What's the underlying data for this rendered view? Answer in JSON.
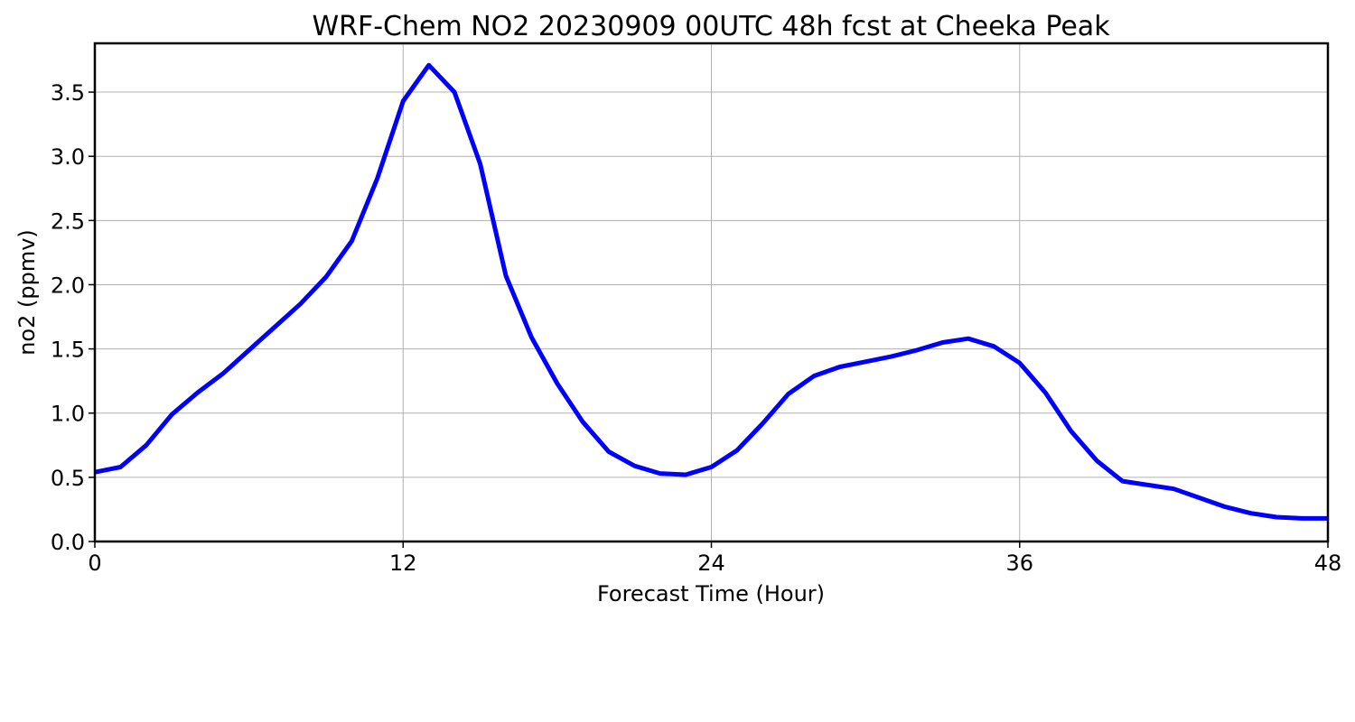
{
  "chart_data": {
    "type": "line",
    "title": "WRF-Chem NO2  20230909 00UTC 48h fcst at Cheeka Peak",
    "xlabel": "Forecast Time (Hour)",
    "ylabel": "no2  (ppmv)",
    "xlim": [
      0,
      48
    ],
    "ylim": [
      0,
      3.88
    ],
    "x_ticks": [
      "0",
      "12",
      "24",
      "36",
      "48"
    ],
    "x_tick_values": [
      0,
      12,
      24,
      36,
      48
    ],
    "y_ticks": [
      "0.0",
      "0.5",
      "1.0",
      "1.5",
      "2.0",
      "2.5",
      "3.0",
      "3.5"
    ],
    "y_tick_values": [
      0,
      0.5,
      1.0,
      1.5,
      2.0,
      2.5,
      3.0,
      3.5
    ],
    "grid": true,
    "series": [
      {
        "color": "#0000ff",
        "x": [
          0,
          1,
          2,
          3,
          4,
          5,
          6,
          7,
          8,
          9,
          10,
          11,
          12,
          13,
          14,
          15,
          16,
          17,
          18,
          19,
          20,
          21,
          22,
          23,
          24,
          25,
          26,
          27,
          28,
          29,
          30,
          31,
          32,
          33,
          34,
          35,
          36,
          37,
          38,
          39,
          40,
          41,
          42,
          43,
          44,
          45,
          46,
          47,
          48
        ],
        "y": [
          0.54,
          0.58,
          0.75,
          0.99,
          1.16,
          1.31,
          1.49,
          1.67,
          1.85,
          2.06,
          2.34,
          2.83,
          3.43,
          3.71,
          3.5,
          2.94,
          2.07,
          1.59,
          1.23,
          0.93,
          0.7,
          0.59,
          0.53,
          0.52,
          0.58,
          0.71,
          0.92,
          1.15,
          1.29,
          1.36,
          1.4,
          1.44,
          1.49,
          1.55,
          1.58,
          1.52,
          1.39,
          1.16,
          0.86,
          0.63,
          0.47,
          0.44,
          0.41,
          0.34,
          0.27,
          0.22,
          0.19,
          0.18,
          0.18
        ]
      }
    ]
  }
}
